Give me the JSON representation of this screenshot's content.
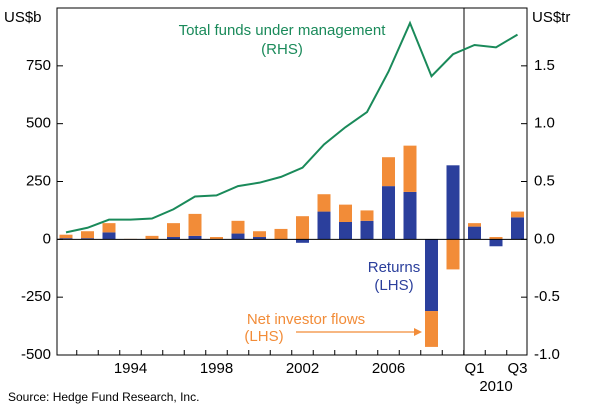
{
  "chart_data": {
    "type": "bar",
    "y_label": "US$b",
    "y2_label": "US$tr",
    "categories": [
      null,
      null,
      null,
      "1994",
      null,
      null,
      null,
      "1998",
      null,
      null,
      null,
      "2002",
      null,
      null,
      null,
      "2006",
      null,
      null,
      null,
      "Q1",
      null,
      "Q3"
    ],
    "x_group_label": "2010",
    "ylim": [
      -500,
      1000
    ],
    "yticks": [
      -500,
      -250,
      0,
      250,
      500,
      750
    ],
    "y2lim": [
      -1.0,
      2.0
    ],
    "y2ticks": [
      {
        "value": -1.0,
        "label": "-1.0"
      },
      {
        "value": -0.5,
        "label": "-0.5"
      },
      {
        "value": 0,
        "label": "0.0"
      },
      {
        "value": 0.5,
        "label": "0.5"
      },
      {
        "value": 1.0,
        "label": "1.0"
      },
      {
        "value": 1.5,
        "label": "1.5"
      }
    ],
    "series": [
      {
        "name": "Returns",
        "note": "(LHS)",
        "type": "bar",
        "color": "#2b3f9c",
        "values": [
          5,
          5,
          30,
          0,
          0,
          10,
          15,
          0,
          25,
          10,
          0,
          -15,
          120,
          75,
          80,
          230,
          205,
          -310,
          320,
          55,
          -30,
          95
        ]
      },
      {
        "name": "Net investor flows",
        "note": "(LHS)",
        "type": "bar",
        "color": "#f28c38",
        "values": [
          15,
          30,
          40,
          2,
          15,
          60,
          95,
          10,
          55,
          25,
          45,
          100,
          75,
          75,
          45,
          125,
          200,
          -155,
          -130,
          15,
          10,
          25
        ]
      },
      {
        "name": "Total funds under management",
        "note": "(RHS)",
        "type": "line",
        "axis": "y2",
        "color": "#1a8a5a",
        "values": [
          0.06,
          0.1,
          0.17,
          0.17,
          0.18,
          0.26,
          0.37,
          0.38,
          0.46,
          0.49,
          0.54,
          0.62,
          0.82,
          0.97,
          1.1,
          1.45,
          1.87,
          1.41,
          1.6,
          1.68,
          1.66,
          1.77
        ]
      }
    ],
    "source": "Source: Hedge Fund Research, Inc."
  }
}
